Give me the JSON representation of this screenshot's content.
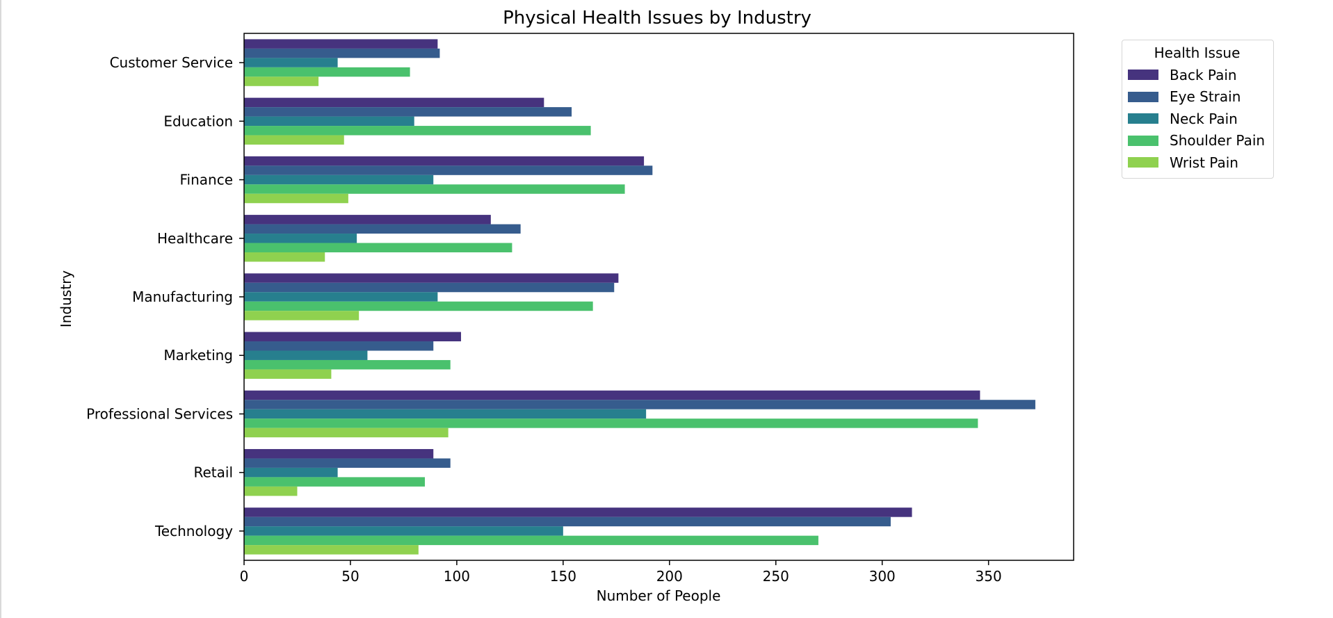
{
  "chart_data": {
    "type": "bar",
    "orientation": "horizontal",
    "title": "Physical Health Issues by Industry",
    "xlabel": "Number of People",
    "ylabel": "Industry",
    "xlim": [
      0,
      390
    ],
    "xticks": [
      0,
      50,
      100,
      150,
      200,
      250,
      300,
      350
    ],
    "grid": false,
    "legend": {
      "title": "Health Issue",
      "placement": "outside-top-right"
    },
    "categories": [
      "Customer Service",
      "Education",
      "Finance",
      "Healthcare",
      "Manufacturing",
      "Marketing",
      "Professional Services",
      "Retail",
      "Technology"
    ],
    "series": [
      {
        "name": "Back Pain",
        "color": "#46337e",
        "values": [
          91,
          141,
          188,
          116,
          176,
          102,
          346,
          89,
          314
        ]
      },
      {
        "name": "Eye Strain",
        "color": "#365c8d",
        "values": [
          92,
          154,
          192,
          130,
          174,
          89,
          372,
          97,
          304
        ]
      },
      {
        "name": "Neck Pain",
        "color": "#277f8e",
        "values": [
          44,
          80,
          89,
          53,
          91,
          58,
          189,
          44,
          150
        ]
      },
      {
        "name": "Shoulder Pain",
        "color": "#4ac16d",
        "values": [
          78,
          163,
          179,
          126,
          164,
          97,
          345,
          85,
          270
        ]
      },
      {
        "name": "Wrist Pain",
        "color": "#8fd14f",
        "values": [
          35,
          47,
          49,
          38,
          54,
          41,
          96,
          25,
          82
        ]
      }
    ]
  }
}
